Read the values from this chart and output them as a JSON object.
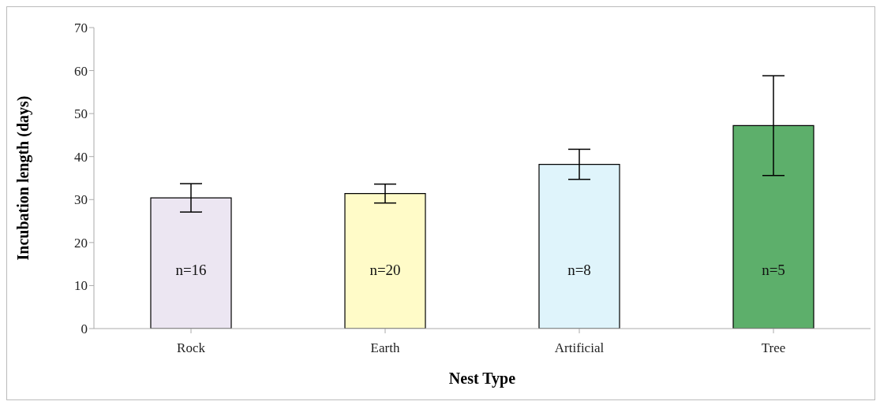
{
  "chart_data": {
    "type": "bar",
    "xlabel": "Nest Type",
    "ylabel": "Incubation length (days)",
    "categories": [
      "Rock",
      "Earth",
      "Artificial",
      "Tree"
    ],
    "values": [
      30.4,
      31.4,
      38.2,
      47.2
    ],
    "errors": [
      3.3,
      2.2,
      3.5,
      11.6
    ],
    "colors": [
      "#ece6f2",
      "#fffbc8",
      "#dff4fb",
      "#5daf6b"
    ],
    "ylim": [
      0,
      70
    ],
    "yticks": [
      0,
      10,
      20,
      30,
      40,
      50,
      60,
      70
    ],
    "grid": false,
    "legend": false,
    "annotations": [
      "n=16",
      "n=20",
      "n=8",
      "n=5"
    ]
  }
}
